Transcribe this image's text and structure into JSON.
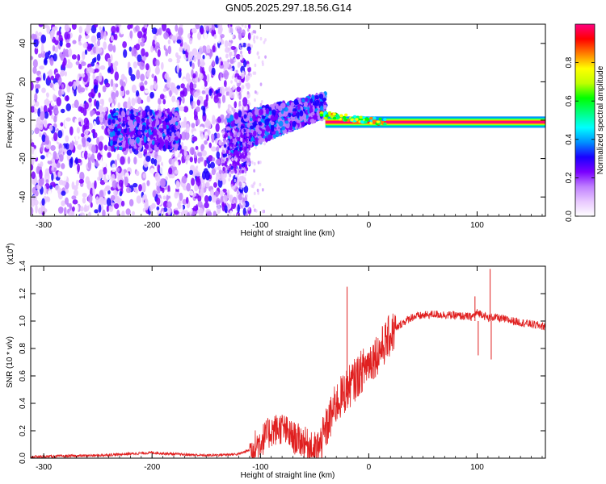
{
  "figure": {
    "title": "GN05.2025.297.18.56.G14"
  },
  "chart_data": [
    {
      "type": "heatmap",
      "title": "GN05.2025.297.18.56.G14",
      "xlabel": "Height of straight line (km)",
      "ylabel": "Frequency (Hz)",
      "xlim": [
        -312,
        163
      ],
      "ylim": [
        -50,
        50
      ],
      "x_ticks": [
        -300,
        -200,
        -100,
        0,
        100
      ],
      "x_tick_labels": [
        "-300",
        "-200",
        "-100",
        "0",
        "100"
      ],
      "y_ticks": [
        -40,
        -20,
        0,
        20,
        40
      ],
      "y_tick_labels": [
        "-40",
        "-20",
        "0",
        "20",
        "40"
      ],
      "colorbar": {
        "label": "Normalized spectral amplitude",
        "range": [
          0,
          1
        ],
        "ticks": [
          0.0,
          0.2,
          0.4,
          0.6,
          0.8
        ],
        "tick_labels": [
          "0.0",
          "0.2",
          "0.4",
          "0.6",
          "0.8"
        ],
        "colors": [
          "#ffffff",
          "#e8c8ff",
          "#c080ff",
          "#7a00ff",
          "#1a00ff",
          "#0090ff",
          "#00ffff",
          "#00ff80",
          "#00ff00",
          "#c0ff00",
          "#ffff00",
          "#ff8000",
          "#ff0000",
          "#ff0080"
        ]
      },
      "features": [
        {
          "name": "noise",
          "x_range": [
            -312,
            -120
          ],
          "freq_center": 0,
          "freq_spread": 50,
          "amplitude": 0.15
        },
        {
          "name": "noise-cluster",
          "x_range": [
            -240,
            -175
          ],
          "freq_center": -5,
          "freq_spread": 10,
          "amplitude": 0.25
        },
        {
          "name": "rising-signal",
          "x_range": [
            -130,
            -40
          ],
          "freq_start": -8,
          "freq_end": 8,
          "amplitude": 0.3
        },
        {
          "name": "tone",
          "x_range": [
            -40,
            163
          ],
          "freq_center": -1,
          "amplitude": 0.95
        }
      ]
    },
    {
      "type": "line",
      "xlabel": "Height of straight line (km)",
      "ylabel": "SNR (10 * v/v)",
      "y_scale_label": "(x10",
      "y_scale_exponent": "4",
      "xlim": [
        -312,
        163
      ],
      "ylim": [
        0,
        1.4
      ],
      "x_ticks": [
        -300,
        -200,
        -100,
        0,
        100
      ],
      "x_tick_labels": [
        "-300",
        "-200",
        "-100",
        "0",
        "100"
      ],
      "y_ticks": [
        0.0,
        0.2,
        0.4,
        0.6,
        0.8,
        1.0,
        1.2,
        1.4
      ],
      "y_tick_labels": [
        "0.0",
        "0.2",
        "0.4",
        "0.6",
        "0.8",
        "1.0",
        "1.2",
        "1.4"
      ],
      "series": [
        {
          "name": "SNR",
          "color": "#e02020",
          "x": [
            -312,
            -250,
            -200,
            -180,
            -150,
            -120,
            -110,
            -100,
            -90,
            -80,
            -70,
            -60,
            -50,
            -45,
            -40,
            -35,
            -30,
            -25,
            -20,
            -15,
            -10,
            -5,
            0,
            10,
            20,
            30,
            40,
            60,
            80,
            95,
            100,
            105,
            110,
            115,
            120,
            140,
            163
          ],
          "values": [
            0.01,
            0.02,
            0.04,
            0.03,
            0.02,
            0.03,
            0.06,
            0.12,
            0.2,
            0.22,
            0.15,
            0.12,
            0.05,
            0.08,
            0.2,
            0.3,
            0.4,
            0.45,
            0.5,
            0.55,
            0.6,
            0.65,
            0.7,
            0.78,
            0.9,
            0.98,
            1.03,
            1.05,
            1.04,
            1.03,
            1.06,
            1.05,
            1.02,
            1.03,
            1.02,
            0.99,
            0.96
          ]
        }
      ],
      "spikes": [
        {
          "x": -20,
          "value": 1.25,
          "base": 0.5
        },
        {
          "x": 98,
          "value": 1.18,
          "base": 1.0
        },
        {
          "x": 112,
          "value": 1.38,
          "base": 1.0
        },
        {
          "x": 113,
          "value": 0.72,
          "base": 1.0
        },
        {
          "x": 101,
          "value": 0.75,
          "base": 1.0
        }
      ]
    }
  ]
}
